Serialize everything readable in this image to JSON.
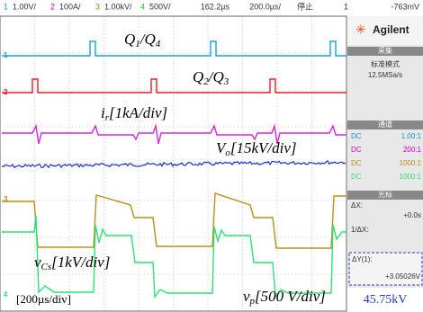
{
  "header": {
    "ch1": "1",
    "ch1_scale": "1.00V/",
    "ch2": "2",
    "ch2_scale": "100A/",
    "ch3": "3",
    "ch3_scale": "1.00kV/",
    "ch4": "4",
    "ch4_scale": "500V/",
    "time_pos": "162.2µs",
    "time_scale": "200.0µs/",
    "status": "停止",
    "trig_ch": "1",
    "trig_level": "-763mV"
  },
  "markers": [
    "1",
    "2",
    "3",
    "4"
  ],
  "annotations": {
    "q14": [
      "Q",
      "1",
      "/Q",
      "4"
    ],
    "q23": [
      "Q",
      "2",
      "/Q",
      "3"
    ],
    "ir": [
      "i",
      "r",
      "[1kA/div]"
    ],
    "vo": [
      "V",
      "o",
      "[15kV/div]"
    ],
    "vcs": [
      "v",
      "Cs",
      "[1kV/div]"
    ],
    "vp": [
      "v",
      "p",
      "[500 V/div]"
    ],
    "timebase": "[200µs/div]"
  },
  "panel": {
    "brand": "Agilent",
    "acq_title": "采集",
    "acq_mode": "标准模式",
    "sample_rate": "12.5MSa/s",
    "ch_title": "通道",
    "channels": [
      {
        "coupling": "DC",
        "probe": "1.00:1"
      },
      {
        "coupling": "DC",
        "probe": "200:1"
      },
      {
        "coupling": "DC",
        "probe": "1000:1"
      },
      {
        "coupling": "DC",
        "probe": "1000:1"
      }
    ],
    "cursor_title": "光标",
    "dx_label": "ΔX:",
    "dx_value": "+0.0s",
    "inv_dx_label": "1/ΔX:",
    "dy_label": "ΔY(1):",
    "dy_value": "+3.05026V",
    "result": "45.75kV"
  }
}
